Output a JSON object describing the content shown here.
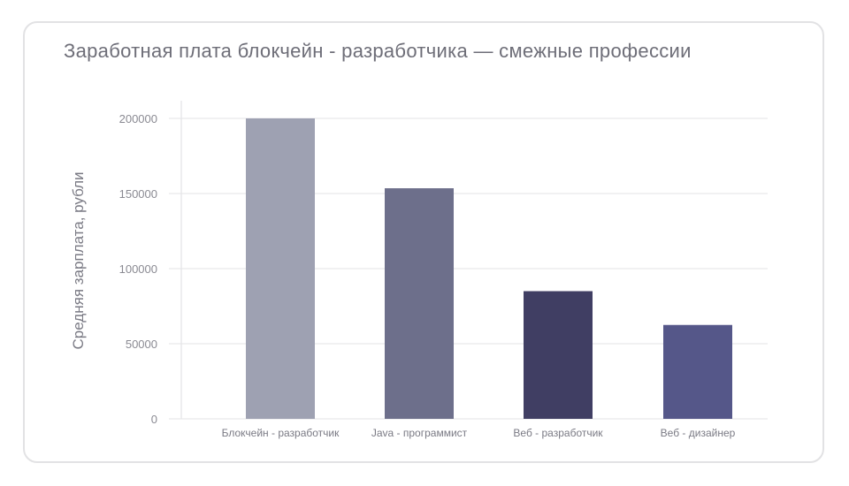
{
  "chart_data": {
    "type": "bar",
    "title": "Заработная плата блокчейн - разработчика — смежные профессии",
    "xlabel": "",
    "ylabel": "Средняя зарплата, рубли",
    "categories": [
      "Блокчейн - разработчик",
      "Java - программист",
      "Веб - разработчик",
      "Веб - дизайнер"
    ],
    "values": [
      200000,
      153500,
      85000,
      62500
    ],
    "colors": [
      "#9ea1b2",
      "#6d6f8b",
      "#403e63",
      "#555789"
    ],
    "ylim": [
      0,
      200000
    ],
    "yticks": [
      "0",
      "50000",
      "100000",
      "150000",
      "200000"
    ],
    "grid": true,
    "legend": "none"
  }
}
